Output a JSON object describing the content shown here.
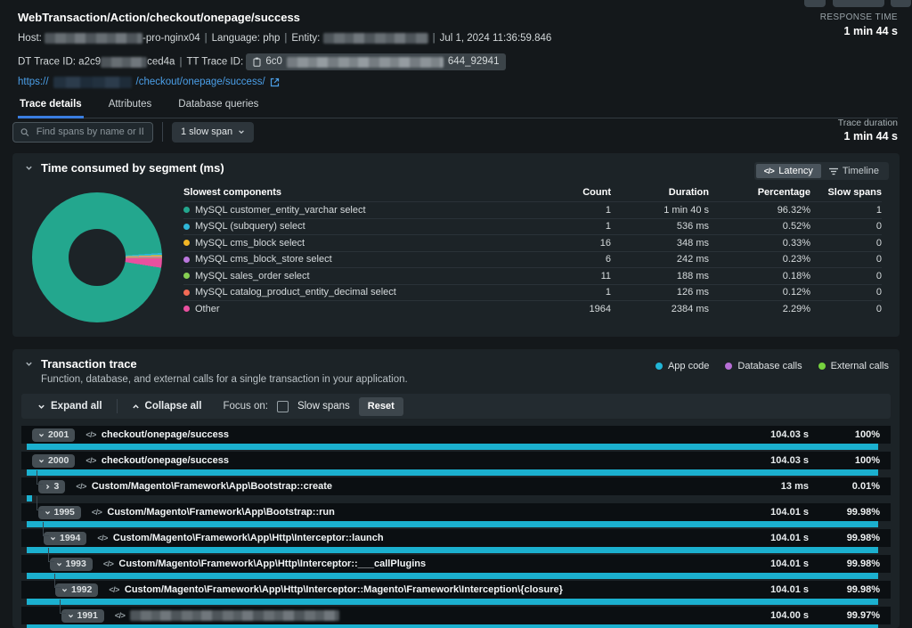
{
  "page": {
    "title": "WebTransaction/Action/checkout/onepage/success",
    "response_time_label": "RESPONSE TIME",
    "response_time_value": "1 min 44 s",
    "meta": {
      "host_label": "Host:",
      "host_value_suffix": "-pro-nginx04",
      "language_label": "Language:",
      "language_value": "php",
      "entity_label": "Entity:",
      "timestamp": "Jul 1, 2024 11:36:59.846",
      "dt_trace_label": "DT Trace ID:",
      "dt_trace_prefix": "a2c9",
      "dt_trace_suffix": "ced4a",
      "tt_trace_label": "TT Trace ID:",
      "tt_trace_prefix": "6c0",
      "tt_trace_suffix": "644_92941",
      "url_prefix": "https://",
      "url_suffix": "/checkout/onepage/success/"
    },
    "tabs": [
      {
        "label": "Trace details",
        "active": true
      },
      {
        "label": "Attributes",
        "active": false
      },
      {
        "label": "Database queries",
        "active": false
      }
    ],
    "filter": {
      "search_placeholder": "Find spans by name or ID",
      "slow_span_button": "1 slow span",
      "trace_duration_label": "Trace duration",
      "trace_duration_value": "1 min 44 s"
    }
  },
  "segments": {
    "title": "Time consumed by segment (ms)",
    "latency_button": "Latency",
    "timeline_button": "Timeline",
    "table": {
      "headers": [
        "Slowest components",
        "Count",
        "Duration",
        "Percentage",
        "Slow spans"
      ],
      "rows": [
        {
          "color": "#23a78e",
          "name": "MySQL customer_entity_varchar select",
          "count": "1",
          "duration": "1 min 40 s",
          "percentage": "96.32%",
          "slow_spans": "1"
        },
        {
          "color": "#2fb7d8",
          "name": "MySQL (subquery) select",
          "count": "1",
          "duration": "536 ms",
          "percentage": "0.52%",
          "slow_spans": "0"
        },
        {
          "color": "#f2b625",
          "name": "MySQL cms_block select",
          "count": "16",
          "duration": "348 ms",
          "percentage": "0.33%",
          "slow_spans": "0"
        },
        {
          "color": "#bb77dd",
          "name": "MySQL cms_block_store select",
          "count": "6",
          "duration": "242 ms",
          "percentage": "0.23%",
          "slow_spans": "0"
        },
        {
          "color": "#86ce52",
          "name": "MySQL sales_order select",
          "count": "11",
          "duration": "188 ms",
          "percentage": "0.18%",
          "slow_spans": "0"
        },
        {
          "color": "#f26a55",
          "name": "MySQL catalog_product_entity_decimal select",
          "count": "1",
          "duration": "126 ms",
          "percentage": "0.12%",
          "slow_spans": "0"
        },
        {
          "color": "#e9509f",
          "name": "Other",
          "count": "1964",
          "duration": "2384 ms",
          "percentage": "2.29%",
          "slow_spans": "0"
        }
      ]
    }
  },
  "chart_data": {
    "type": "pie",
    "donut": true,
    "title": "Time consumed by segment (ms)",
    "unit": "percent of trace duration",
    "legend_position": "table-right",
    "slices": [
      {
        "label": "MySQL (subquery) select",
        "value": 0.52,
        "color": "#2fb7d8"
      },
      {
        "label": "MySQL cms_block select",
        "value": 0.33,
        "color": "#f2b625"
      },
      {
        "label": "MySQL cms_block_store select",
        "value": 0.23,
        "color": "#bb77dd"
      },
      {
        "label": "MySQL sales_order select",
        "value": 0.18,
        "color": "#86ce52"
      },
      {
        "label": "MySQL catalog_product_entity_decimal select",
        "value": 0.12,
        "color": "#f26a55"
      },
      {
        "label": "Other",
        "value": 2.29,
        "color": "#e9509f"
      },
      {
        "label": "MySQL customer_entity_varchar select",
        "value": 96.32,
        "color": "#23a78e"
      }
    ]
  },
  "trace": {
    "title": "Transaction trace",
    "subtitle": "Function, database, and external calls for a single transaction in your application.",
    "legend": [
      {
        "label": "App code",
        "color": "#21b5d6"
      },
      {
        "label": "Database calls",
        "color": "#b66ed5"
      },
      {
        "label": "External calls",
        "color": "#76d23e"
      }
    ],
    "toolbar": {
      "expand_all": "Expand all",
      "collapse_all": "Collapse all",
      "focus_on": "Focus on:",
      "slow_spans": "Slow spans",
      "reset": "Reset"
    },
    "rows": [
      {
        "id": "2001",
        "expanded": true,
        "indent": 0,
        "name": "checkout/onepage/success",
        "duration": "104.03 s",
        "percentage": "100%",
        "bar": 100
      },
      {
        "id": "2000",
        "expanded": true,
        "indent": 0,
        "name": "checkout/onepage/success",
        "duration": "104.03 s",
        "percentage": "100%",
        "bar": 100
      },
      {
        "id": "3",
        "expanded": false,
        "indent": 1,
        "name": "Custom/Magento\\Framework\\App\\Bootstrap::create",
        "duration": "13 ms",
        "percentage": "0.01%",
        "bar": 0.6
      },
      {
        "id": "1995",
        "expanded": true,
        "indent": 1,
        "name": "Custom/Magento\\Framework\\App\\Bootstrap::run",
        "duration": "104.01 s",
        "percentage": "99.98%",
        "bar": 100
      },
      {
        "id": "1994",
        "expanded": true,
        "indent": 2,
        "name": "Custom/Magento\\Framework\\App\\Http\\Interceptor::launch",
        "duration": "104.01 s",
        "percentage": "99.98%",
        "bar": 100
      },
      {
        "id": "1993",
        "expanded": true,
        "indent": 3,
        "name": "Custom/Magento\\Framework\\App\\Http\\Interceptor::___callPlugins",
        "duration": "104.01 s",
        "percentage": "99.98%",
        "bar": 100
      },
      {
        "id": "1992",
        "expanded": true,
        "indent": 4,
        "name": "Custom/Magento\\Framework\\App\\Http\\Interceptor::Magento\\Framework\\Interception\\{closure}",
        "duration": "104.01 s",
        "percentage": "99.98%",
        "bar": 100
      },
      {
        "id": "1991",
        "expanded": true,
        "indent": 5,
        "name": "",
        "redacted": true,
        "duration": "104.00 s",
        "percentage": "99.97%",
        "bar": 100
      }
    ]
  }
}
